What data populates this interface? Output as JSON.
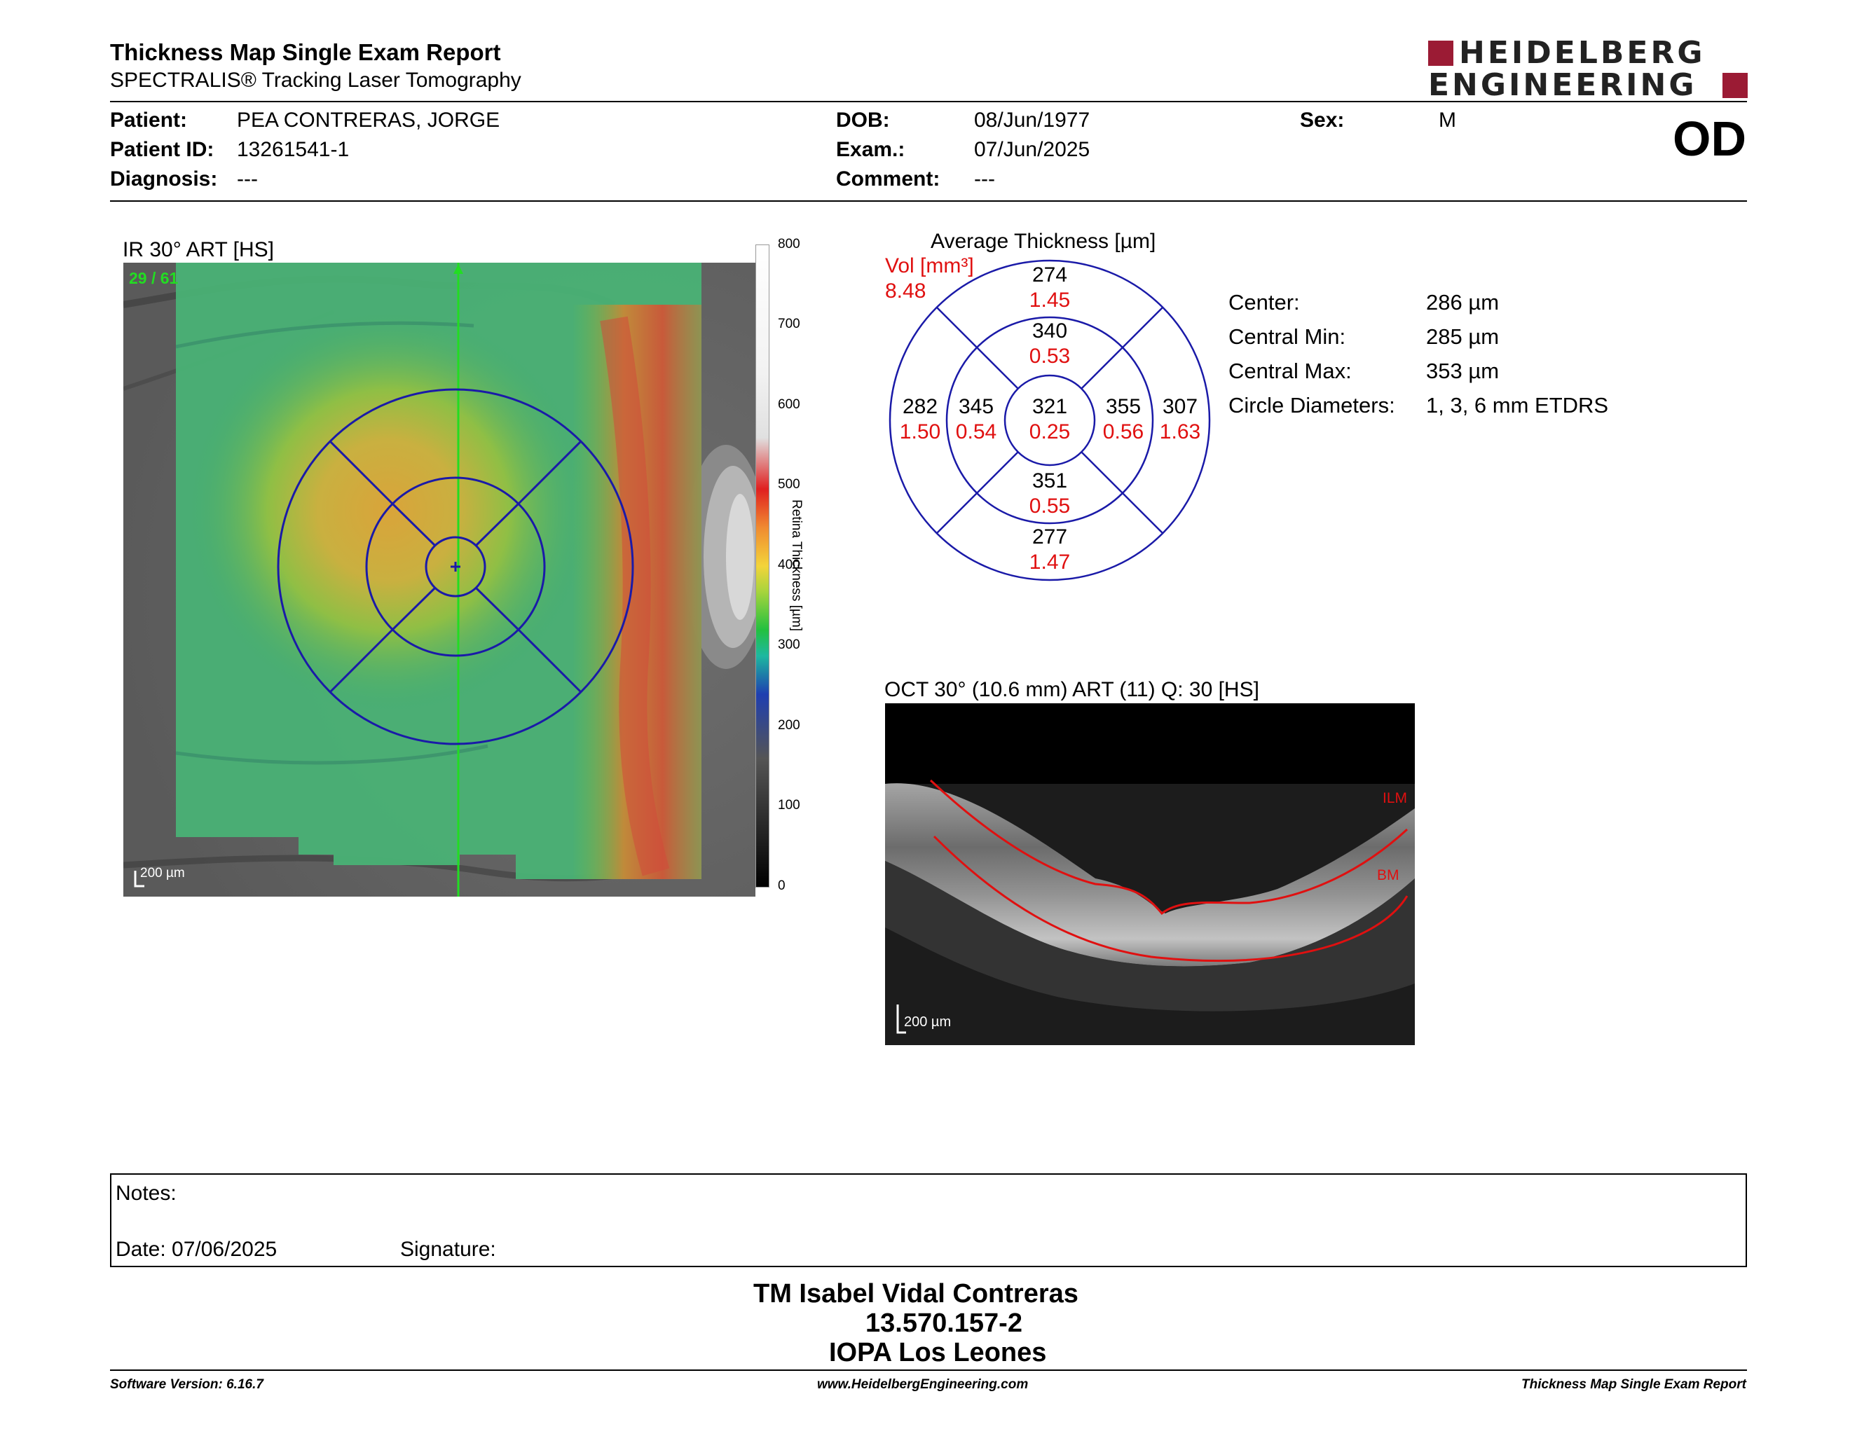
{
  "report": {
    "title": "Thickness Map Single Exam Report",
    "subtitle": "SPECTRALIS® Tracking Laser Tomography",
    "eye": "OD"
  },
  "brand": {
    "line1": "HEIDELBERG",
    "line2": "ENGINEERING",
    "color": "#9b1b34"
  },
  "patient": {
    "patient_label": "Patient:",
    "patient_value": "PEA CONTRERAS, JORGE",
    "id_label": "Patient ID:",
    "id_value": "13261541-1",
    "diagnosis_label": "Diagnosis:",
    "diagnosis_value": "---",
    "dob_label": "DOB:",
    "dob_value": "08/Jun/1977",
    "exam_label": "Exam.:",
    "exam_value": "07/Jun/2025",
    "comment_label": "Comment:",
    "comment_value": "---",
    "sex_label": "Sex:",
    "sex_value": "M"
  },
  "ir_panel": {
    "title": "IR 30° ART [HS]",
    "frame_counter": "29 / 61",
    "scale_label": "200 µm",
    "colorbar_label": "Retina Thickness [µm]",
    "colorbar_ticks": [
      "800",
      "700",
      "600",
      "500",
      "400",
      "300",
      "200",
      "100",
      "0"
    ]
  },
  "etdrs": {
    "title": "Average Thickness [µm]",
    "vol_label": "Vol [mm³]",
    "vol_total": "8.48",
    "sectors": {
      "outer_superior": {
        "thickness": "274",
        "volume": "1.45"
      },
      "inner_superior": {
        "thickness": "340",
        "volume": "0.53"
      },
      "outer_nasal": {
        "thickness": "282",
        "volume": "1.50"
      },
      "inner_nasal": {
        "thickness": "345",
        "volume": "0.54"
      },
      "center": {
        "thickness": "321",
        "volume": "0.25"
      },
      "inner_temporal": {
        "thickness": "355",
        "volume": "0.56"
      },
      "outer_temporal": {
        "thickness": "307",
        "volume": "1.63"
      },
      "inner_inferior": {
        "thickness": "351",
        "volume": "0.55"
      },
      "outer_inferior": {
        "thickness": "277",
        "volume": "1.47"
      }
    }
  },
  "stats": {
    "center_label": "Center:",
    "center_value": "286 µm",
    "min_label": "Central Min:",
    "min_value": "285 µm",
    "max_label": "Central Max:",
    "max_value": "353 µm",
    "diam_label": "Circle Diameters:",
    "diam_value": "1, 3, 6 mm ETDRS"
  },
  "oct_panel": {
    "title": "OCT 30° (10.6 mm) ART (11) Q: 30 [HS]",
    "ilm_label": "ILM",
    "bm_label": "BM",
    "scale_label": "200 µm"
  },
  "notes": {
    "notes_label": "Notes:",
    "date_label": "Date: 07/06/2025",
    "signature_label": "Signature:"
  },
  "signature_block": {
    "name": "TM Isabel Vidal Contreras",
    "id": "13.570.157-2",
    "institution": "IOPA Los Leones"
  },
  "footer": {
    "software": "Software Version: 6.16.7",
    "website": "www.HeidelbergEngineering.com",
    "report_name": "Thickness Map Single Exam Report"
  },
  "colors": {
    "etdrs_ring": "#1a1aa8",
    "volume_text": "#e01010",
    "scan_line": "#22dd22"
  }
}
